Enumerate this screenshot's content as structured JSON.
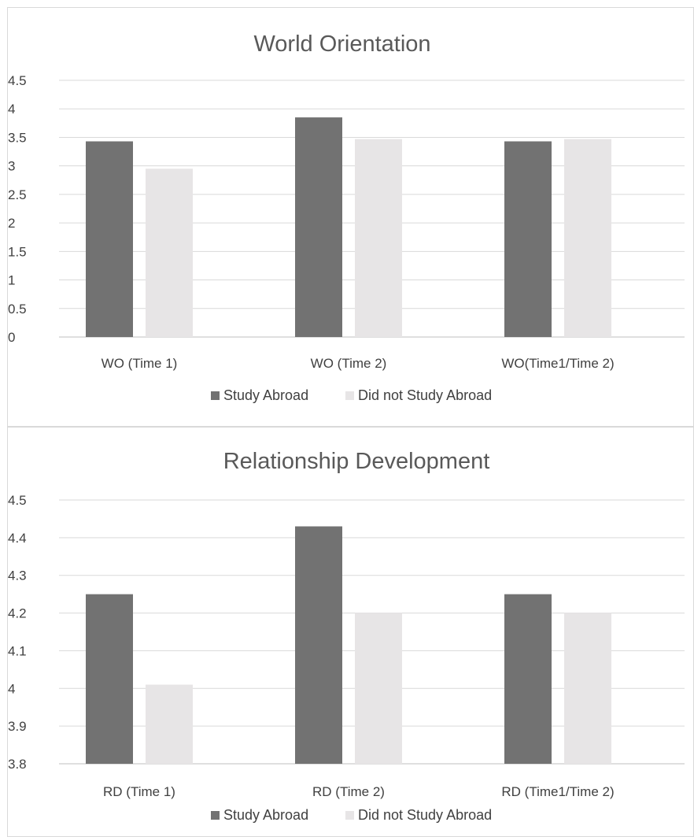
{
  "colors": {
    "study_abroad": "#727272",
    "did_not_study_abroad": "#e7e5e6"
  },
  "chart_data": [
    {
      "type": "bar",
      "title": "World Orientation",
      "categories": [
        "WO (Time 1)",
        "WO (Time 2)",
        "WO(Time1/Time 2)"
      ],
      "series": [
        {
          "name": "Study Abroad",
          "values": [
            3.43,
            3.85,
            3.43
          ]
        },
        {
          "name": "Did not Study Abroad",
          "values": [
            2.95,
            3.47,
            3.47
          ]
        }
      ],
      "ylim": [
        0,
        4.5
      ],
      "yticks": [
        "4.5",
        "4",
        "3.5",
        "3",
        "2.5",
        "2",
        "1.5",
        "1",
        "0.5",
        "0"
      ],
      "grid": true,
      "legend": "bottom"
    },
    {
      "type": "bar",
      "title": "Relationship Development",
      "categories": [
        "RD (Time 1)",
        "RD (Time 2)",
        "RD (Time1/Time 2)"
      ],
      "series": [
        {
          "name": "Study Abroad",
          "values": [
            4.25,
            4.43,
            4.25
          ]
        },
        {
          "name": "Did not Study Abroad",
          "values": [
            4.01,
            4.2,
            4.2
          ]
        }
      ],
      "ylim": [
        3.8,
        4.5
      ],
      "yticks": [
        "4.5",
        "4.4",
        "4.3",
        "4.2",
        "4.1",
        "4",
        "3.9",
        "3.8"
      ],
      "grid": true,
      "legend": "bottom"
    }
  ]
}
